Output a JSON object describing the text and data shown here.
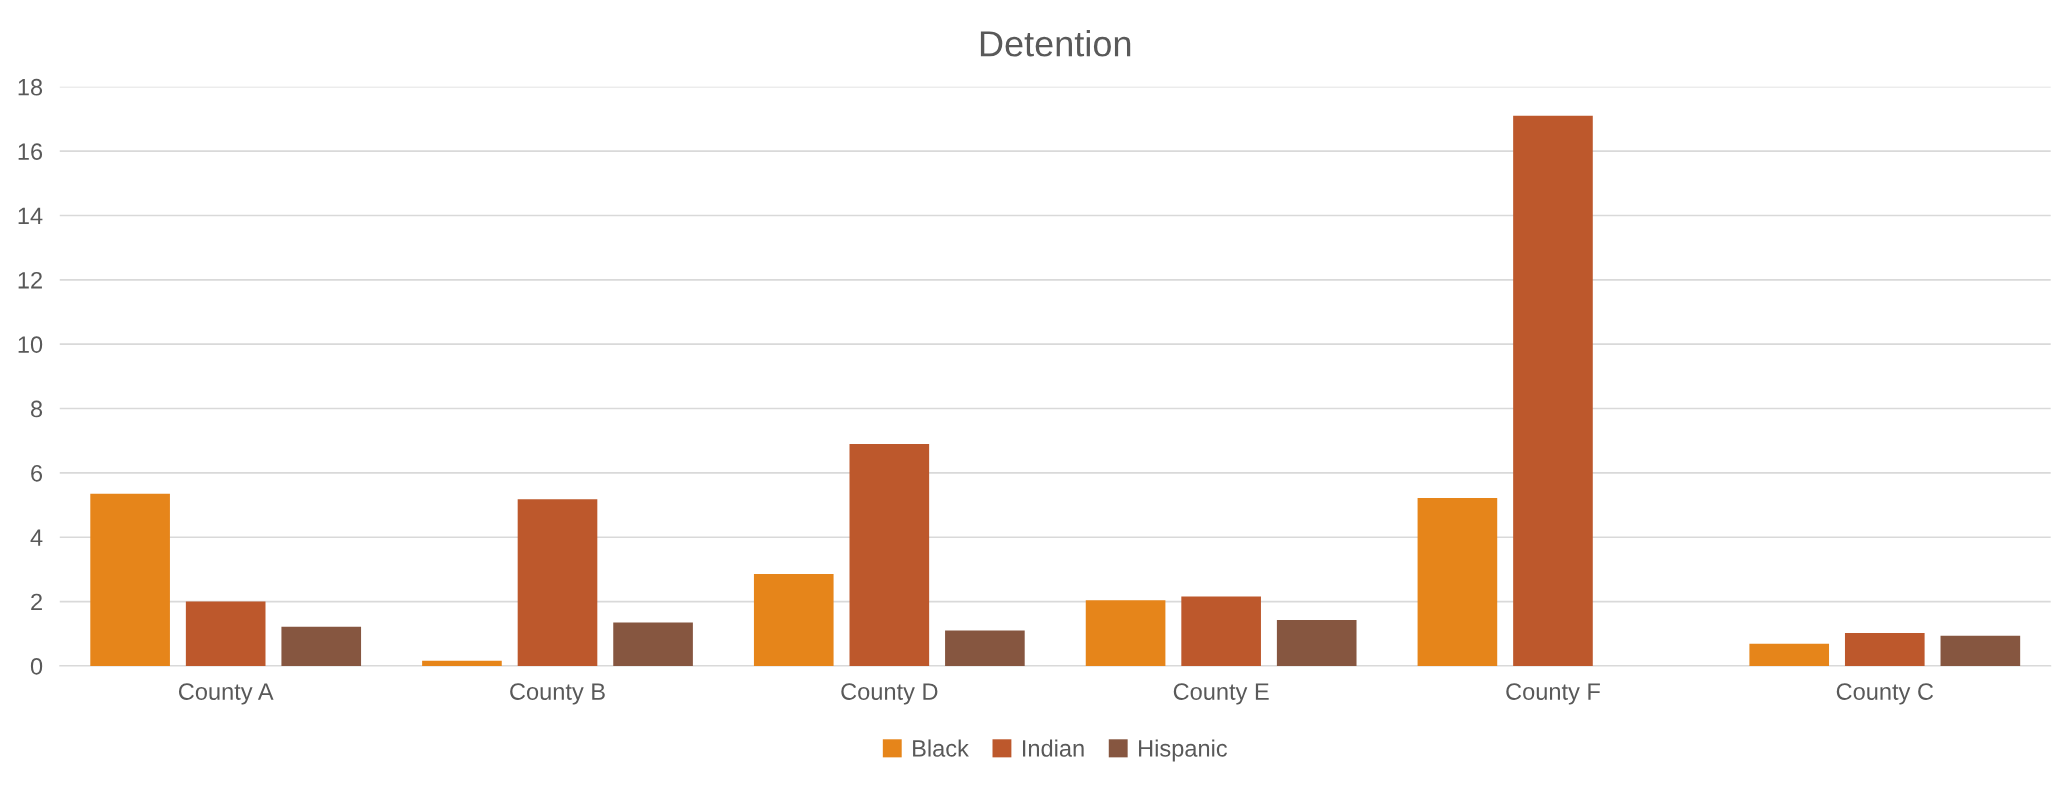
{
  "chart_data": {
    "type": "bar",
    "title": "Detention",
    "categories": [
      "County A",
      "County B",
      "County D",
      "County E",
      "County F",
      "County C"
    ],
    "series": [
      {
        "name": "Black",
        "color": "#e6851a",
        "values": [
          5.35,
          0.16,
          2.86,
          2.04,
          5.22,
          0.69
        ]
      },
      {
        "name": "Indian",
        "color": "#bd582c",
        "values": [
          2.0,
          5.18,
          6.9,
          2.16,
          17.1,
          1.02
        ]
      },
      {
        "name": "Hispanic",
        "color": "#865640",
        "values": [
          1.22,
          1.35,
          1.1,
          1.43,
          null,
          0.94
        ]
      }
    ],
    "ylim": [
      0,
      18
    ],
    "yticks": [
      0,
      2,
      4,
      6,
      8,
      10,
      12,
      14,
      16,
      18
    ],
    "grid": "y",
    "legend": "bottom"
  }
}
